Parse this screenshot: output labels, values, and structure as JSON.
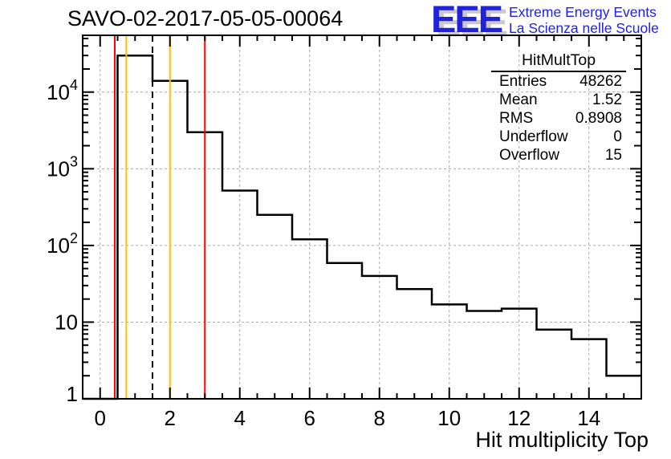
{
  "page": {
    "title": "SAVO-02-2017-05-05-00064"
  },
  "logo": {
    "acronym": "EEE",
    "line1": "Extreme Energy Events",
    "line2": "La Scienza nelle Scuole",
    "color": "#2222dd",
    "shadow_color": "#c9c9c9"
  },
  "stats": {
    "title": "HitMultTop",
    "rows": [
      {
        "label": "Entries",
        "value": "48262"
      },
      {
        "label": "Mean",
        "value": "1.52"
      },
      {
        "label": "RMS",
        "value": "0.8908"
      },
      {
        "label": "Underflow",
        "value": "0"
      },
      {
        "label": "Overflow",
        "value": "15"
      }
    ]
  },
  "chart_data": {
    "type": "bar",
    "style": "step-histogram-outline",
    "title": "SAVO-02-2017-05-05-00064",
    "xlabel": "Hit multiplicity Top",
    "ylabel": "",
    "yscale": "log",
    "grid": true,
    "xlim": [
      -0.5,
      15.5
    ],
    "ylim": [
      1,
      55000
    ],
    "bin_width": 1,
    "bin_centers": [
      0,
      1,
      2,
      3,
      4,
      5,
      6,
      7,
      8,
      9,
      10,
      11,
      12,
      13,
      14,
      15
    ],
    "values": [
      0,
      30000,
      14000,
      3000,
      520,
      250,
      120,
      59,
      40,
      27,
      17,
      14,
      15,
      8,
      6,
      2
    ],
    "line_color": "#000000",
    "grid_color": "#a9a9a9",
    "x_major_ticks": [
      0,
      2,
      4,
      6,
      8,
      10,
      12,
      14
    ],
    "x_tick_labels": [
      "0",
      "2",
      "4",
      "6",
      "8",
      "10",
      "12",
      "14"
    ],
    "x_minor_step": 0.5,
    "y_ticks": [
      {
        "value": 1,
        "base": "1",
        "exp": ""
      },
      {
        "value": 10,
        "base": "10",
        "exp": ""
      },
      {
        "value": 100,
        "base": "10",
        "exp": "2"
      },
      {
        "value": 1000,
        "base": "10",
        "exp": "3"
      },
      {
        "value": 10000,
        "base": "10",
        "exp": "4"
      }
    ],
    "reference_lines": [
      {
        "x": 0.5,
        "color": "#ff0000",
        "style": "solid"
      },
      {
        "x": 0.75,
        "color": "#ffc000",
        "style": "solid"
      },
      {
        "x": 1.5,
        "color": "#000000",
        "style": "dashed"
      },
      {
        "x": 2.0,
        "color": "#ffc000",
        "style": "solid"
      },
      {
        "x": 3.0,
        "color": "#ff0000",
        "style": "solid"
      }
    ]
  }
}
